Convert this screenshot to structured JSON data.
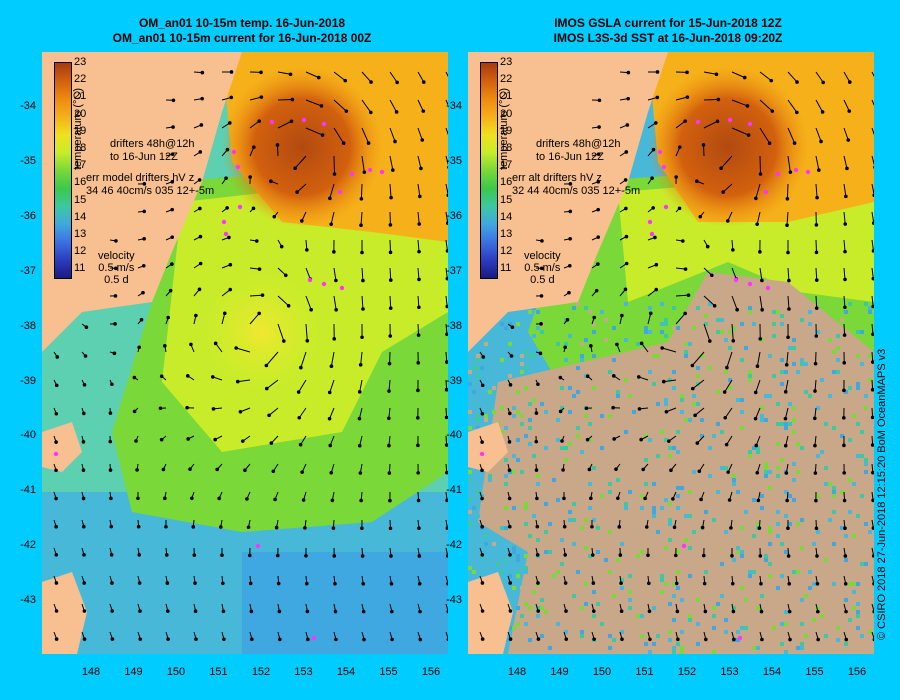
{
  "left_panel": {
    "title_line1": "OM_an01 10-15m temp. 16-Jun-2018",
    "title_line2": "OM_an01 10-15m current for 16-Jun-2018 00Z",
    "drifters_line1": "drifters 48h@12h",
    "drifters_line2": "to 16-Jun 12Z",
    "err_line1": "err model drifters hV z",
    "err_line2": "34 46 40cm/s 035 12+-5m"
  },
  "right_panel": {
    "title_line1": "IMOS GSLA current for 15-Jun-2018 12Z",
    "title_line2": "IMOS L3S-3d SST at 16-Jun-2018 09:20Z",
    "drifters_line1": "drifters 48h@12h",
    "drifters_line2": "to 16-Jun 12Z",
    "err_line1": "err alt drifters hV z",
    "err_line2": "32 44 40cm/s 035 12+-5m"
  },
  "colorbar": {
    "title": "temperature (°C)",
    "ticks": [
      "23",
      "22",
      "21",
      "20",
      "19",
      "18",
      "17",
      "16",
      "15",
      "14",
      "13",
      "12",
      "11"
    ],
    "colors": [
      "#a83a0e",
      "#d2600e",
      "#ee8a10",
      "#f5b01a",
      "#f0e020",
      "#c8ec2a",
      "#7ad838",
      "#3cc84a",
      "#3cc8a0",
      "#40a8e0",
      "#3c70e0",
      "#2c3cc0",
      "#1a1a80"
    ]
  },
  "velocity": {
    "title": "velocity",
    "scale": "0.5 m/s",
    "time": "0.5 d"
  },
  "lat_ticks": [
    "-34",
    "-35",
    "-36",
    "-37",
    "-38",
    "-39",
    "-40",
    "-41",
    "-42",
    "-43"
  ],
  "lon_ticks": [
    "148",
    "149",
    "150",
    "151",
    "152",
    "153",
    "154",
    "155",
    "156"
  ],
  "credit": "© CSIRO 2018   27-Jun-2018 12:15:20 BoM OceanMAPS v3",
  "colors": {
    "background": "#00ccff",
    "land": "#f8c090",
    "no_data": "#c8a888",
    "drifter": "#ff33ff"
  }
}
